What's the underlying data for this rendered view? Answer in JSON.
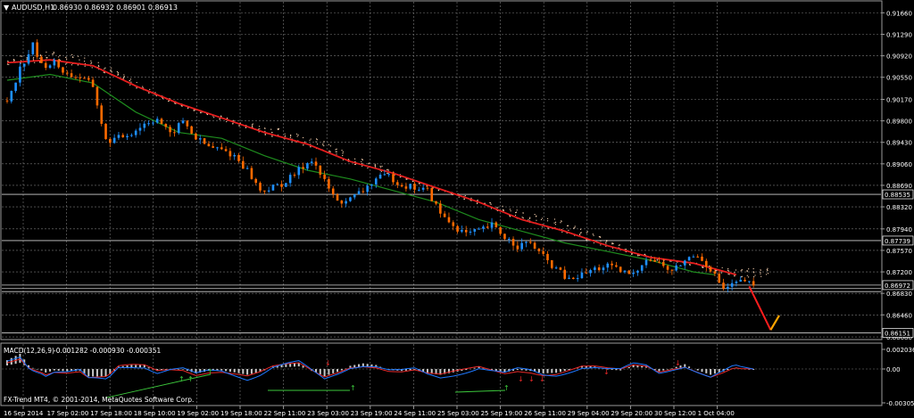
{
  "header": {
    "symbol_label": "AUDUSD,H1",
    "ohlc": "0.86930 0.86932 0.86901 0.86913"
  },
  "macd_panel": {
    "label": "MACD(12,26,9)",
    "values": "-0.001282 -0.000930 -0.000351",
    "scale": [
      "0.002036",
      "0.00",
      "-0.003051"
    ]
  },
  "watermark": "FX-Trend MT4, © 2001-2014, MetaQuotes Software Corp.",
  "colors": {
    "background": "#000000",
    "grid": "#7a7a7a",
    "bull_candle": "#1e90ff",
    "bear_candle": "#ff6a00",
    "red_ma": "#e61e1e",
    "green_ma": "#1e8c1e",
    "cloud_dots": "#ffd7b4",
    "macd_histogram": "#c8c8c8",
    "macd_signal_line": "#e62828",
    "macd_main_line": "#1e78ff",
    "arrow_up": "#3cc83c",
    "arrow_down": "#e62828",
    "target_arrow_red": "#ff1e1e",
    "target_arrow_orange": "#ffa500"
  },
  "chart_data": {
    "type": "candlestick",
    "symbol": "AUDUSD",
    "timeframe": "H1",
    "ylim": [
      0.8605,
      0.9185
    ],
    "y_ticks": [
      "0.91660",
      "0.91290",
      "0.90920",
      "0.90550",
      "0.90170",
      "0.89800",
      "0.89430",
      "0.89060",
      "0.88690",
      "0.88320",
      "0.87940",
      "0.87570",
      "0.87200",
      "0.86830",
      "0.86460",
      "0.86080"
    ],
    "x_ticks": [
      "16 Sep 2014",
      "17 Sep 02:00",
      "17 Sep 18:00",
      "18 Sep 10:00",
      "19 Sep 02:00",
      "19 Sep 18:00",
      "22 Sep 11:00",
      "23 Sep 03:00",
      "23 Sep 19:00",
      "24 Sep 11:00",
      "25 Sep 03:00",
      "25 Sep 19:00",
      "26 Sep 11:00",
      "29 Sep 04:00",
      "29 Sep 20:00",
      "30 Sep 12:00",
      "1 Oct 04:00"
    ],
    "price_lines": [
      "0.88535",
      "0.87739",
      "0.86972",
      "0.86151"
    ],
    "price_lines_extra": [
      "0.86913",
      "0.86860"
    ],
    "close_path": [
      [
        0,
        0.9015
      ],
      [
        3,
        0.907
      ],
      [
        6,
        0.911
      ],
      [
        8,
        0.9075
      ],
      [
        11,
        0.908
      ],
      [
        14,
        0.906
      ],
      [
        17,
        0.9055
      ],
      [
        20,
        0.904
      ],
      [
        23,
        0.8945
      ],
      [
        26,
        0.895
      ],
      [
        29,
        0.896
      ],
      [
        32,
        0.8975
      ],
      [
        35,
        0.8985
      ],
      [
        38,
        0.8955
      ],
      [
        41,
        0.898
      ],
      [
        44,
        0.895
      ],
      [
        47,
        0.8935
      ],
      [
        50,
        0.893
      ],
      [
        53,
        0.892
      ],
      [
        56,
        0.8895
      ],
      [
        59,
        0.886
      ],
      [
        62,
        0.8865
      ],
      [
        65,
        0.8875
      ],
      [
        68,
        0.8895
      ],
      [
        71,
        0.8915
      ],
      [
        74,
        0.8875
      ],
      [
        77,
        0.884
      ],
      [
        80,
        0.8845
      ],
      [
        83,
        0.886
      ],
      [
        86,
        0.888
      ],
      [
        89,
        0.8885
      ],
      [
        92,
        0.887
      ],
      [
        95,
        0.8865
      ],
      [
        98,
        0.886
      ],
      [
        101,
        0.882
      ],
      [
        104,
        0.88
      ],
      [
        107,
        0.8785
      ],
      [
        110,
        0.879
      ],
      [
        113,
        0.88
      ],
      [
        116,
        0.878
      ],
      [
        119,
        0.8765
      ],
      [
        122,
        0.877
      ],
      [
        125,
        0.8745
      ],
      [
        128,
        0.8725
      ],
      [
        131,
        0.8705
      ],
      [
        134,
        0.8715
      ],
      [
        137,
        0.8725
      ],
      [
        140,
        0.873
      ],
      [
        143,
        0.872
      ],
      [
        146,
        0.8715
      ],
      [
        149,
        0.8745
      ],
      [
        152,
        0.8735
      ],
      [
        155,
        0.872
      ],
      [
        158,
        0.874
      ],
      [
        161,
        0.875
      ],
      [
        164,
        0.8725
      ],
      [
        167,
        0.869
      ],
      [
        170,
        0.87
      ],
      [
        172,
        0.8705
      ],
      [
        174,
        0.8693
      ]
    ],
    "red_ma": [
      [
        0,
        0.908
      ],
      [
        10,
        0.9085
      ],
      [
        20,
        0.9075
      ],
      [
        30,
        0.904
      ],
      [
        40,
        0.901
      ],
      [
        50,
        0.8985
      ],
      [
        60,
        0.896
      ],
      [
        70,
        0.894
      ],
      [
        80,
        0.891
      ],
      [
        90,
        0.889
      ],
      [
        100,
        0.8865
      ],
      [
        110,
        0.884
      ],
      [
        120,
        0.881
      ],
      [
        130,
        0.879
      ],
      [
        140,
        0.8765
      ],
      [
        150,
        0.8745
      ],
      [
        160,
        0.8735
      ],
      [
        170,
        0.8715
      ]
    ],
    "green_ma": [
      [
        0,
        0.905
      ],
      [
        10,
        0.906
      ],
      [
        20,
        0.9045
      ],
      [
        30,
        0.8995
      ],
      [
        40,
        0.896
      ],
      [
        50,
        0.895
      ],
      [
        60,
        0.892
      ],
      [
        70,
        0.8895
      ],
      [
        80,
        0.888
      ],
      [
        90,
        0.886
      ],
      [
        100,
        0.884
      ],
      [
        110,
        0.881
      ],
      [
        120,
        0.879
      ],
      [
        130,
        0.877
      ],
      [
        140,
        0.8755
      ],
      [
        150,
        0.874
      ],
      [
        160,
        0.872
      ],
      [
        165,
        0.8715
      ]
    ],
    "forecast": {
      "red_arrow": [
        [
          173,
          0.8695
        ],
        [
          178,
          0.862
        ]
      ],
      "orange_arrow": [
        [
          178,
          0.862
        ],
        [
          180,
          0.8645
        ]
      ]
    }
  }
}
